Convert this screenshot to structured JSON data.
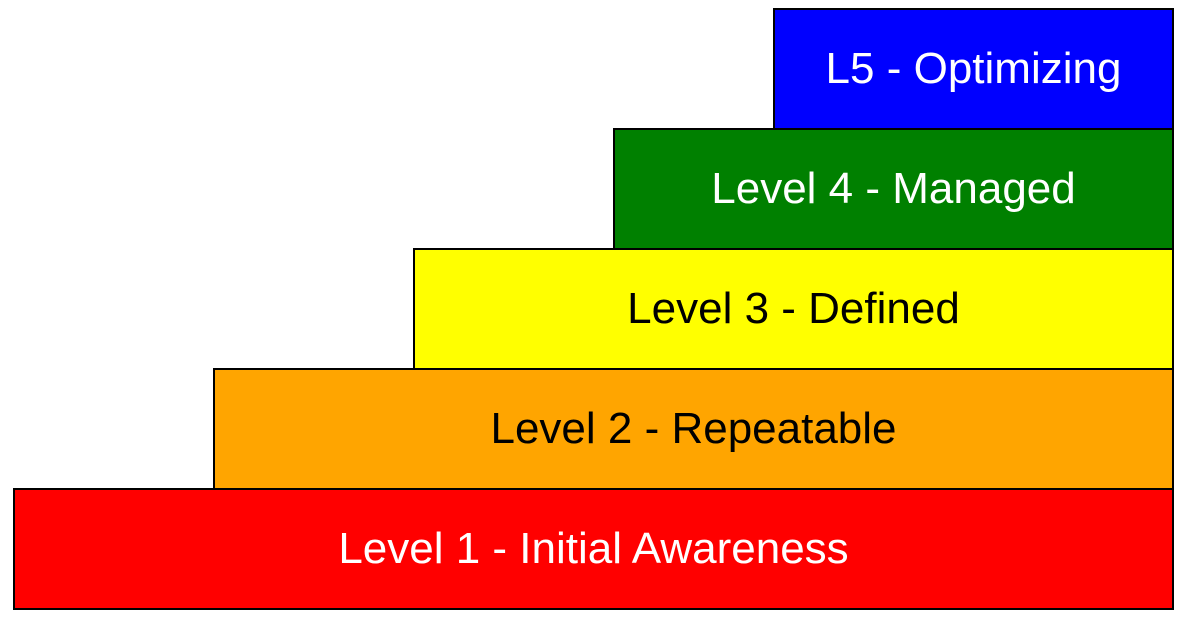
{
  "steps": [
    {
      "id": "level-5",
      "label": "L5 - Optimizing",
      "fill": "#0000ff",
      "text_color": "#ffffff"
    },
    {
      "id": "level-4",
      "label": "Level 4 - Managed",
      "fill": "#008000",
      "text_color": "#ffffff"
    },
    {
      "id": "level-3",
      "label": "Level 3 - Defined",
      "fill": "#ffff00",
      "text_color": "#000000"
    },
    {
      "id": "level-2",
      "label": "Level 2 - Repeatable",
      "fill": "#ffa500",
      "text_color": "#000000"
    },
    {
      "id": "level-1",
      "label": "Level 1 - Initial Awareness",
      "fill": "#ff0000",
      "text_color": "#ffffff"
    }
  ]
}
